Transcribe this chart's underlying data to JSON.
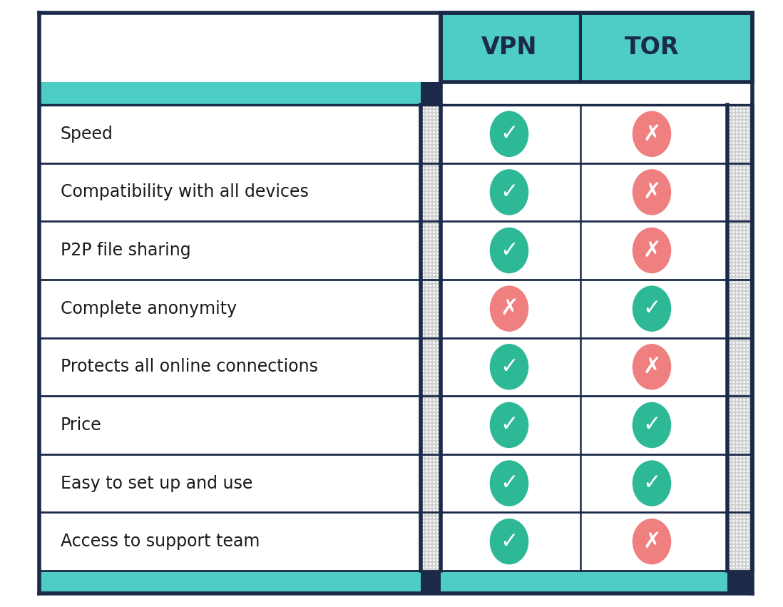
{
  "rows": [
    "Speed",
    "Compatibility with all devices",
    "P2P file sharing",
    "Complete anonymity",
    "Protects all online connections",
    "Price",
    "Easy to set up and use",
    "Access to support team"
  ],
  "vpn_values": [
    true,
    true,
    true,
    false,
    true,
    true,
    true,
    true
  ],
  "tor_values": [
    false,
    false,
    false,
    true,
    false,
    true,
    true,
    false
  ],
  "col_headers": [
    "VPN",
    "TOR"
  ],
  "teal_color": "#4ecdc4",
  "teal_dark": "#0e7b7b",
  "dark_navy": "#1b2a49",
  "green_circle": "#2db896",
  "red_circle": "#f08080",
  "white": "#ffffff",
  "row_bg": "#ffffff",
  "header_text_color": "#1b2a49",
  "row_text_color": "#1a1a1a",
  "stipple_color": "#c8c8c8",
  "font_size_header": 24,
  "font_size_row": 17,
  "background_color": "#ffffff"
}
